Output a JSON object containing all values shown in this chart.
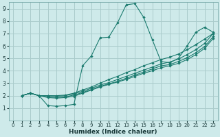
{
  "xlabel": "Humidex (Indice chaleur)",
  "ylabel": "",
  "background_color": "#ceeaea",
  "grid_color": "#aacccc",
  "line_color": "#1a7a6e",
  "marker_color": "#1a7a6e",
  "xlim": [
    -0.5,
    23.5
  ],
  "ylim": [
    0,
    9.5
  ],
  "xticks": [
    0,
    1,
    2,
    3,
    4,
    5,
    6,
    7,
    8,
    9,
    10,
    11,
    12,
    13,
    14,
    15,
    16,
    17,
    18,
    19,
    20,
    21,
    22,
    23
  ],
  "yticks": [
    1,
    2,
    3,
    4,
    5,
    6,
    7,
    8,
    9
  ],
  "lines": [
    {
      "x": [
        1,
        2,
        3,
        4,
        5,
        6,
        7,
        8,
        9,
        10,
        11,
        12,
        13,
        14,
        15,
        16,
        17,
        18,
        19,
        20,
        21,
        22,
        23
      ],
      "y": [
        2.0,
        2.2,
        2.0,
        1.2,
        1.15,
        1.2,
        1.3,
        4.4,
        5.2,
        6.65,
        6.7,
        7.85,
        9.3,
        9.4,
        8.3,
        6.5,
        4.75,
        4.65,
        5.0,
        6.0,
        7.1,
        7.5,
        7.1
      ]
    },
    {
      "x": [
        1,
        2,
        3,
        4,
        5,
        6,
        7,
        8,
        9,
        10,
        11,
        12,
        13,
        14,
        15,
        16,
        17,
        18,
        19,
        20,
        21,
        22,
        23
      ],
      "y": [
        2.0,
        2.2,
        2.0,
        2.0,
        2.0,
        2.05,
        2.2,
        2.45,
        2.7,
        3.0,
        3.3,
        3.55,
        3.85,
        4.1,
        4.4,
        4.65,
        4.9,
        5.1,
        5.35,
        5.7,
        6.1,
        6.55,
        7.0
      ]
    },
    {
      "x": [
        1,
        2,
        3,
        4,
        5,
        6,
        7,
        8,
        9,
        10,
        11,
        12,
        13,
        14,
        15,
        16,
        17,
        18,
        19,
        20,
        21,
        22,
        23
      ],
      "y": [
        2.0,
        2.2,
        2.0,
        2.0,
        1.95,
        2.0,
        2.15,
        2.35,
        2.6,
        2.85,
        3.05,
        3.3,
        3.55,
        3.8,
        4.05,
        4.3,
        4.55,
        4.7,
        4.95,
        5.3,
        5.7,
        6.2,
        7.0
      ]
    },
    {
      "x": [
        1,
        2,
        3,
        4,
        5,
        6,
        7,
        8,
        9,
        10,
        11,
        12,
        13,
        14,
        15,
        16,
        17,
        18,
        19,
        20,
        21,
        22,
        23
      ],
      "y": [
        2.0,
        2.2,
        2.0,
        1.9,
        1.85,
        1.9,
        2.05,
        2.25,
        2.5,
        2.75,
        2.95,
        3.15,
        3.4,
        3.65,
        3.9,
        4.15,
        4.4,
        4.5,
        4.75,
        5.05,
        5.45,
        5.95,
        6.75
      ]
    },
    {
      "x": [
        1,
        2,
        3,
        4,
        5,
        6,
        7,
        8,
        9,
        10,
        11,
        12,
        13,
        14,
        15,
        16,
        17,
        18,
        19,
        20,
        21,
        22,
        23
      ],
      "y": [
        2.0,
        2.2,
        2.0,
        1.85,
        1.8,
        1.85,
        1.95,
        2.2,
        2.45,
        2.7,
        2.9,
        3.1,
        3.3,
        3.55,
        3.8,
        4.0,
        4.25,
        4.4,
        4.6,
        4.9,
        5.3,
        5.8,
        6.6
      ]
    }
  ]
}
